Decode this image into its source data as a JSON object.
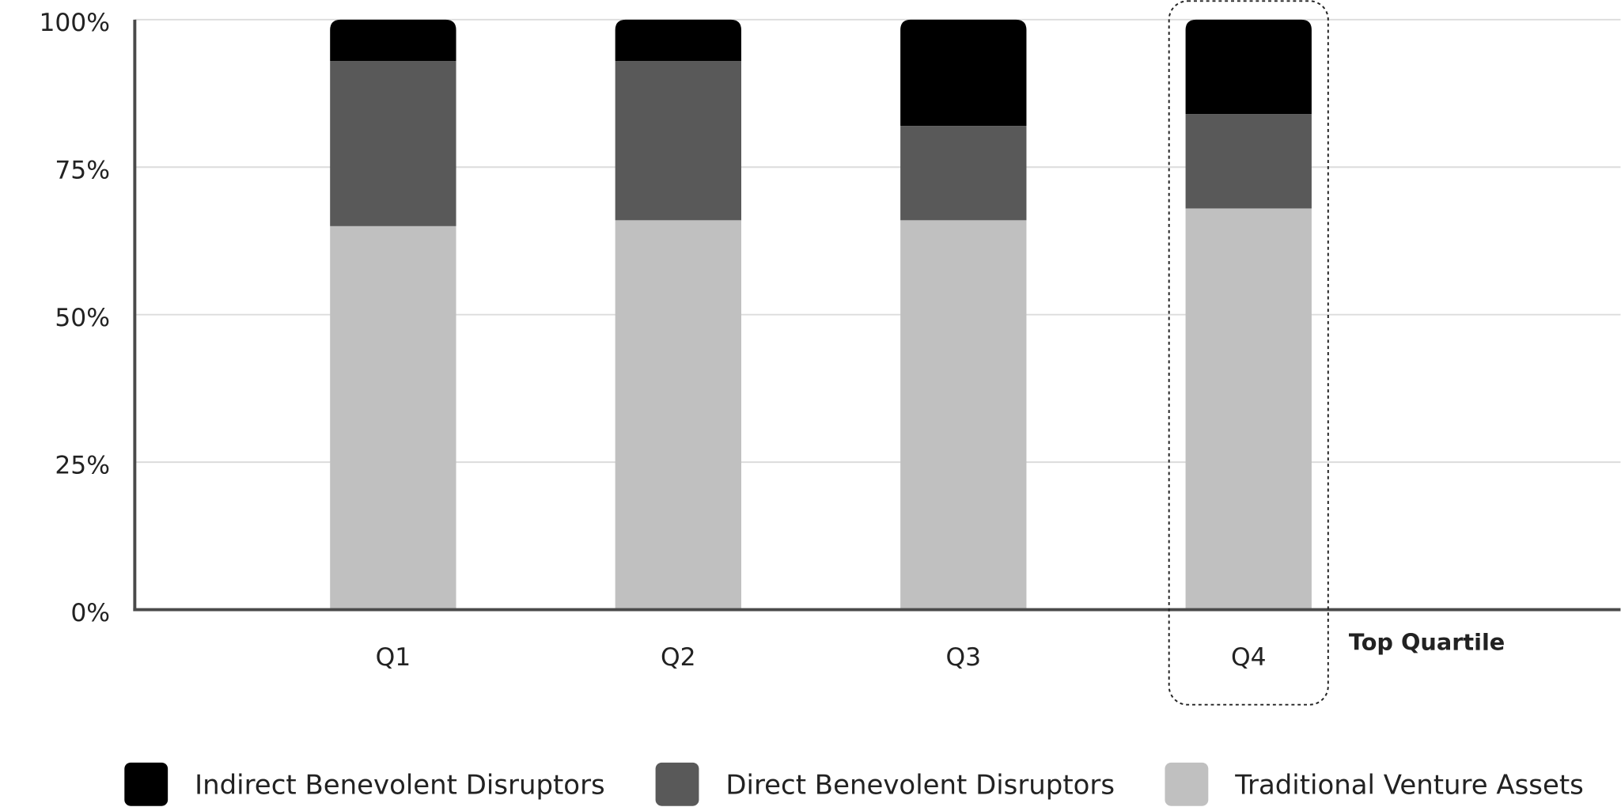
{
  "chart_data": {
    "type": "stacked-bar",
    "categories": [
      "Q1",
      "Q2",
      "Q3",
      "Q4"
    ],
    "series": [
      {
        "name": "Indirect Benevolent Disruptors",
        "color": "#000000",
        "values": [
          7,
          7,
          18,
          16
        ]
      },
      {
        "name": "Direct Benevolent Disruptors",
        "color": "#595959",
        "values": [
          28,
          27,
          16,
          16
        ]
      },
      {
        "name": "Traditional Venture Assets",
        "color": "#c0c0c0",
        "values": [
          65,
          66,
          66,
          68
        ]
      }
    ],
    "ylim": [
      0,
      100
    ],
    "yticks": [
      {
        "value": 0,
        "label": "0%"
      },
      {
        "value": 25,
        "label": "25%"
      },
      {
        "value": 50,
        "label": "50%"
      },
      {
        "value": 75,
        "label": "75%"
      },
      {
        "value": 100,
        "label": "100%"
      }
    ],
    "grid": true,
    "highlight_category": "Q4",
    "annotation": "Top Quartile",
    "legend": "bottom"
  }
}
